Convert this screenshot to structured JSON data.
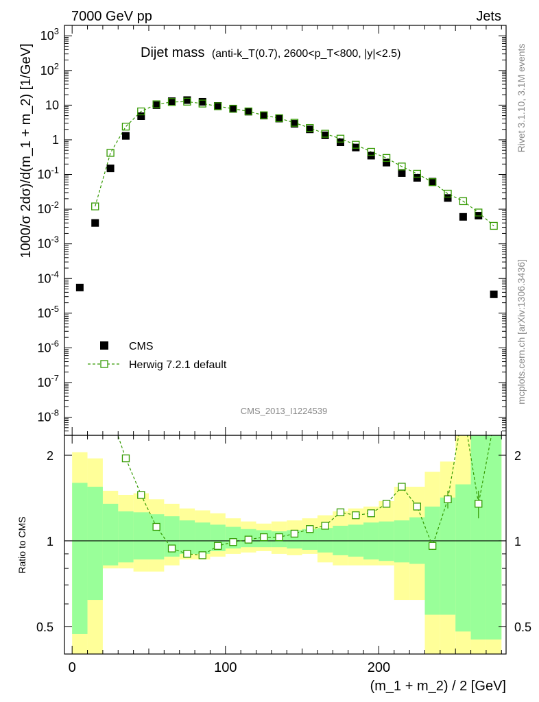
{
  "header": {
    "left": "7000 GeV pp",
    "right": "Jets"
  },
  "plot_title": {
    "main": "Dijet mass",
    "sub": "(anti-k_T(0.7), 2600<p_T<800, |y|<2.5)"
  },
  "side_labels": {
    "rivet": "Rivet 3.1.10,  3.1M events",
    "mcplots": "mcplots.cern.ch [arXiv:1306.3436]"
  },
  "analysis_id": "CMS_2013_I1224539",
  "colors": {
    "mc": "#339900",
    "band_stat": "#99ff99",
    "band_tot": "#ffff99",
    "data": "#000000"
  },
  "chart_data": [
    {
      "type": "scatter",
      "panel": "main",
      "ylabel": "1000/σ 2dσ)/d(m_1 + m_2) [1/GeV]",
      "y_scale": "log",
      "xlim": [
        -5,
        283
      ],
      "ylim": [
        3e-09,
        2000
      ],
      "y_tick_labels": [
        "10^-8",
        "10^-7",
        "10^-6",
        "10^-5",
        "10^-4",
        "10^-3",
        "10^-2",
        "10^-1",
        "1",
        "10",
        "10^2",
        "10^3"
      ],
      "legend": {
        "placement": "bottom-left",
        "entries": [
          "CMS",
          "Herwig 7.2.1 default"
        ]
      },
      "x": [
        5,
        15,
        25,
        35,
        45,
        55,
        65,
        75,
        85,
        95,
        105,
        115,
        125,
        135,
        145,
        155,
        165,
        175,
        185,
        195,
        205,
        215,
        225,
        235,
        245,
        255,
        265,
        275
      ],
      "series": [
        {
          "name": "CMS",
          "values": [
            5.5e-05,
            0.004,
            0.15,
            1.3,
            4.8,
            10,
            13,
            14,
            12.5,
            9.5,
            7.8,
            6.5,
            5.0,
            4.1,
            2.9,
            2.0,
            1.35,
            0.85,
            0.6,
            0.35,
            0.22,
            0.11,
            0.08,
            0.062,
            0.021,
            0.006,
            0.0065,
            3.5e-05
          ]
        },
        {
          "name": "Herwig 7.2.1 default",
          "values": [
            null,
            0.012,
            0.42,
            2.4,
            6.6,
            10.6,
            12.3,
            12.6,
            11.1,
            9.3,
            7.9,
            6.6,
            5.1,
            4.2,
            3.1,
            2.2,
            1.5,
            1.08,
            0.72,
            0.45,
            0.3,
            0.17,
            0.105,
            0.06,
            0.028,
            0.017,
            0.008,
            0.0033
          ]
        }
      ]
    },
    {
      "type": "line",
      "panel": "ratio",
      "ylabel": "Ratio to CMS",
      "xlabel": "(m_1 + m_2) / 2 [GeV]",
      "y_scale": "log",
      "xlim": [
        -5,
        283
      ],
      "ylim": [
        0.4,
        2.35
      ],
      "x_tick_labels": [
        "0",
        "100",
        "200"
      ],
      "y_tick_labels": [
        "0.5",
        "1",
        "2"
      ],
      "bins": [
        [
          0,
          10
        ],
        [
          10,
          20
        ],
        [
          20,
          30
        ],
        [
          30,
          40
        ],
        [
          40,
          50
        ],
        [
          50,
          60
        ],
        [
          60,
          70
        ],
        [
          70,
          80
        ],
        [
          80,
          90
        ],
        [
          90,
          100
        ],
        [
          100,
          110
        ],
        [
          110,
          120
        ],
        [
          120,
          130
        ],
        [
          130,
          140
        ],
        [
          140,
          150
        ],
        [
          150,
          160
        ],
        [
          160,
          170
        ],
        [
          170,
          180
        ],
        [
          180,
          190
        ],
        [
          190,
          200
        ],
        [
          200,
          210
        ],
        [
          210,
          220
        ],
        [
          220,
          230
        ],
        [
          230,
          240
        ],
        [
          240,
          250
        ],
        [
          250,
          260
        ],
        [
          260,
          270
        ],
        [
          270,
          280
        ]
      ],
      "band_stat": [
        [
          0.47,
          1.6
        ],
        [
          0.62,
          1.55
        ],
        [
          0.82,
          1.35
        ],
        [
          0.84,
          1.27
        ],
        [
          0.86,
          1.26
        ],
        [
          0.86,
          1.24
        ],
        [
          0.88,
          1.22
        ],
        [
          0.9,
          1.18
        ],
        [
          0.9,
          1.16
        ],
        [
          0.92,
          1.14
        ],
        [
          0.94,
          1.12
        ],
        [
          0.95,
          1.1
        ],
        [
          0.95,
          1.09
        ],
        [
          0.95,
          1.08
        ],
        [
          0.94,
          1.09
        ],
        [
          0.93,
          1.1
        ],
        [
          0.91,
          1.11
        ],
        [
          0.89,
          1.13
        ],
        [
          0.88,
          1.14
        ],
        [
          0.86,
          1.16
        ],
        [
          0.85,
          1.17
        ],
        [
          0.84,
          1.18
        ],
        [
          0.83,
          1.21
        ],
        [
          0.55,
          1.32
        ],
        [
          0.55,
          1.42
        ],
        [
          0.48,
          1.58
        ],
        [
          0.45,
          2.4
        ],
        [
          0.45,
          2.4
        ]
      ],
      "band_tot": [
        [
          0.4,
          2.05
        ],
        [
          0.4,
          1.95
        ],
        [
          0.8,
          1.5
        ],
        [
          0.8,
          1.45
        ],
        [
          0.78,
          1.47
        ],
        [
          0.78,
          1.4
        ],
        [
          0.82,
          1.35
        ],
        [
          0.86,
          1.3
        ],
        [
          0.86,
          1.28
        ],
        [
          0.88,
          1.25
        ],
        [
          0.9,
          1.2
        ],
        [
          0.91,
          1.17
        ],
        [
          0.92,
          1.15
        ],
        [
          0.9,
          1.17
        ],
        [
          0.89,
          1.18
        ],
        [
          0.9,
          1.2
        ],
        [
          0.84,
          1.23
        ],
        [
          0.82,
          1.27
        ],
        [
          0.82,
          1.3
        ],
        [
          0.82,
          1.32
        ],
        [
          0.82,
          1.38
        ],
        [
          0.62,
          1.55
        ],
        [
          0.62,
          1.55
        ],
        [
          0.4,
          1.75
        ],
        [
          0.4,
          1.9
        ],
        [
          0.4,
          2.4
        ],
        [
          0.4,
          2.4
        ],
        [
          0.4,
          2.4
        ]
      ],
      "herwig_ratio_x": [
        25,
        35,
        45,
        55,
        65,
        75,
        85,
        95,
        105,
        115,
        125,
        135,
        145,
        155,
        165,
        175,
        185,
        195,
        205,
        215,
        225,
        235,
        245,
        255,
        265,
        275
      ],
      "herwig_ratio": [
        2.8,
        1.95,
        1.45,
        1.12,
        0.94,
        0.9,
        0.89,
        0.96,
        0.99,
        1.01,
        1.03,
        1.03,
        1.06,
        1.1,
        1.13,
        1.26,
        1.23,
        1.25,
        1.35,
        1.55,
        1.32,
        0.96,
        1.4,
        2.9,
        1.35,
        2.6
      ],
      "herwig_ratio_err": [
        0,
        0,
        0,
        0,
        0,
        0,
        0,
        0,
        0,
        0,
        0,
        0,
        0,
        0,
        0,
        0,
        0,
        0,
        0,
        0,
        0,
        0.03,
        0.1,
        0,
        0.15,
        0
      ]
    }
  ]
}
